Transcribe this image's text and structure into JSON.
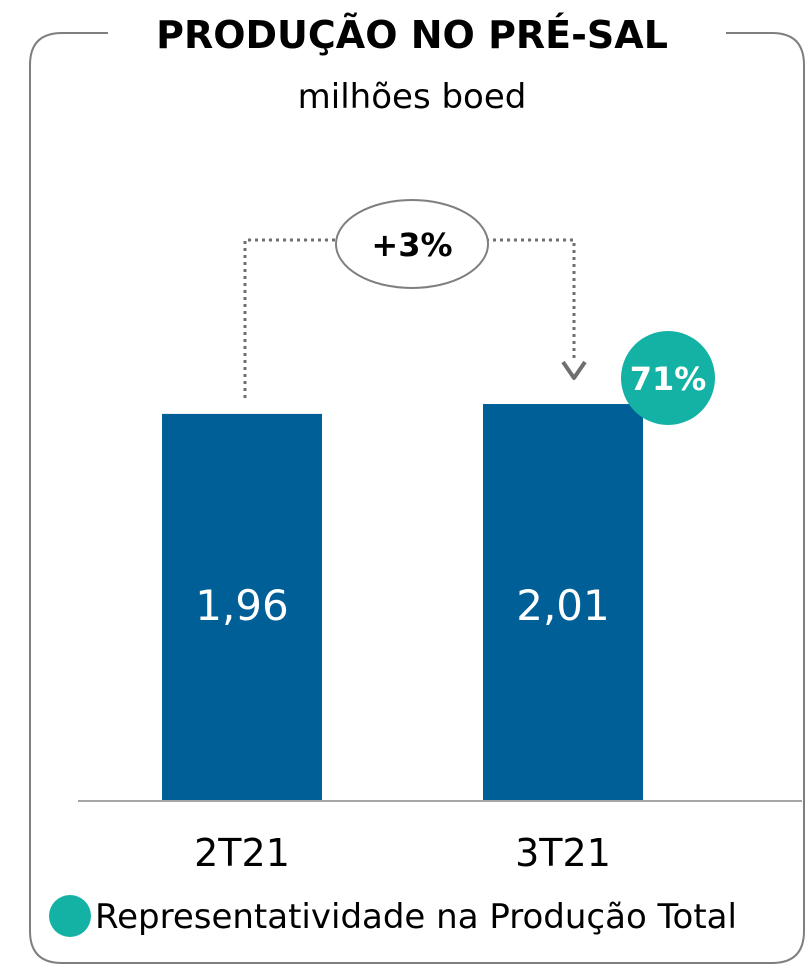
{
  "chart_data": {
    "type": "bar",
    "title": "PRODUÇÃO NO PRÉ-SAL",
    "subtitle": "milhões boed",
    "categories": [
      "2T21",
      "3T21"
    ],
    "values": [
      1.96,
      2.01
    ],
    "value_labels": [
      "1,96",
      "2,01"
    ],
    "change_label": "+3%",
    "share_badge": {
      "category": "3T21",
      "label": "71%"
    },
    "legend": [
      {
        "label": "Representatividade na Produção Total",
        "color": "#14B1A5"
      }
    ],
    "bar_color": "#005F96",
    "grid": false
  },
  "colors": {
    "bar": "#005F96",
    "badge": "#14B1A5",
    "connector": "#6F6F6F",
    "frame": "#7F7F7F",
    "axis": "#A6A6A6"
  }
}
